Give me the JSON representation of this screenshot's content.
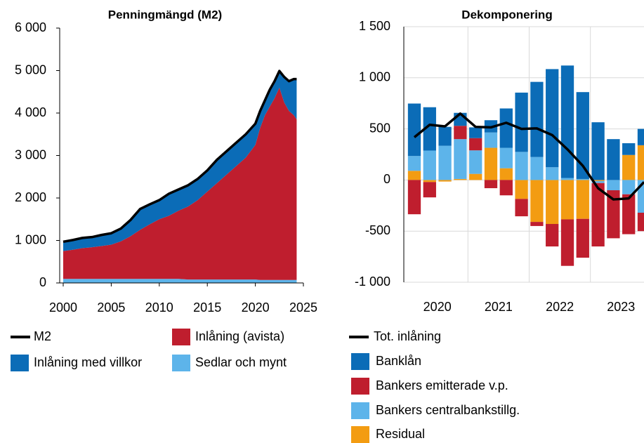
{
  "chart_data": [
    {
      "type": "area",
      "title": "Penningmängd (M2)",
      "x": [
        2000,
        2001,
        2002,
        2003,
        2004,
        2005,
        2006,
        2007,
        2008,
        2009,
        2010,
        2011,
        2012,
        2013,
        2014,
        2015,
        2016,
        2017,
        2018,
        2019,
        2020,
        2020.5,
        2021,
        2021.5,
        2022,
        2022.5,
        2023,
        2023.5,
        2024,
        2024.3
      ],
      "series": [
        {
          "name": "M2",
          "type": "line",
          "color": "#000000",
          "values": [
            970,
            1010,
            1060,
            1080,
            1130,
            1170,
            1280,
            1480,
            1740,
            1850,
            1950,
            2100,
            2200,
            2300,
            2450,
            2650,
            2900,
            3100,
            3300,
            3500,
            3750,
            4050,
            4300,
            4550,
            4750,
            4990,
            4850,
            4750,
            4800,
            4800
          ]
        },
        {
          "name": "Sedlar och mynt",
          "color": "#5db4ea",
          "values": [
            95,
            95,
            95,
            95,
            95,
            95,
            95,
            95,
            95,
            95,
            95,
            95,
            95,
            80,
            80,
            80,
            80,
            80,
            80,
            80,
            80,
            70,
            70,
            70,
            70,
            70,
            70,
            70,
            70,
            70
          ]
        },
        {
          "name": "Inlåning (avista)",
          "color": "#bf1e2e",
          "values": [
            655,
            685,
            725,
            745,
            775,
            805,
            885,
            1005,
            1155,
            1285,
            1405,
            1485,
            1605,
            1720,
            1870,
            2070,
            2270,
            2470,
            2670,
            2870,
            3170,
            3580,
            3880,
            4080,
            4280,
            4530,
            4180,
            3980,
            3880,
            3780
          ]
        },
        {
          "name": "Inlåning med villkor",
          "color": "#0b6cb7",
          "values": [
            220,
            230,
            240,
            240,
            260,
            270,
            300,
            380,
            490,
            470,
            450,
            520,
            500,
            500,
            500,
            500,
            550,
            550,
            550,
            550,
            500,
            400,
            350,
            400,
            400,
            390,
            600,
            700,
            850,
            950
          ]
        }
      ],
      "xlim": [
        2000,
        2025
      ],
      "xticks": [
        2000,
        2005,
        2010,
        2015,
        2020,
        2025
      ],
      "ylim": [
        0,
        6000
      ],
      "yticks": [
        0,
        {
          "value": 1000,
          "label": "1 000"
        },
        {
          "value": 2000,
          "label": "2 000"
        },
        {
          "value": 3000,
          "label": "3 000"
        },
        {
          "value": 4000,
          "label": "4 000"
        },
        {
          "value": 5000,
          "label": "5 000"
        },
        {
          "value": 6000,
          "label": "6 000"
        }
      ]
    },
    {
      "type": "bar",
      "title": "Dekomponering",
      "categories": [
        null,
        null,
        null,
        null,
        null,
        null,
        null,
        null,
        null,
        null,
        null,
        null,
        null,
        null,
        null,
        null
      ],
      "category_groups": [
        "2020",
        "2021",
        "2022",
        "2023"
      ],
      "series": [
        {
          "name": "Tot. inlåning",
          "type": "line",
          "color": "#000000",
          "values": [
            418,
            540,
            525,
            650,
            520,
            515,
            560,
            500,
            505,
            440,
            300,
            140,
            -80,
            -190,
            -180,
            -20
          ]
        },
        {
          "name": "Residual",
          "color": "#f39c12",
          "values": [
            90,
            -20,
            -15,
            10,
            60,
            315,
            115,
            -185,
            -410,
            -430,
            -385,
            -380,
            -10,
            0,
            245,
            340
          ]
        },
        {
          "name": "Bankers centralbankstillg.",
          "color": "#5db4ea",
          "values": [
            145,
            288,
            335,
            390,
            230,
            150,
            200,
            275,
            225,
            125,
            20,
            10,
            -20,
            -100,
            -140,
            -320
          ]
        },
        {
          "name": "Bankers emitterade v.p.",
          "color": "#bf1e2e",
          "values": [
            -335,
            -150,
            0,
            130,
            120,
            -80,
            -150,
            -170,
            -40,
            -220,
            -455,
            -380,
            -620,
            -470,
            -390,
            -180
          ]
        },
        {
          "name": "Banklån",
          "color": "#0b6cb7",
          "values": [
            513,
            424,
            185,
            127,
            105,
            120,
            385,
            580,
            735,
            960,
            1100,
            850,
            565,
            400,
            115,
            160
          ]
        }
      ],
      "ylim": [
        -1000,
        1500
      ],
      "yticks": [
        {
          "value": -1000,
          "label": "-1 000"
        },
        -500,
        0,
        500,
        {
          "value": 1000,
          "label": "1 000"
        },
        {
          "value": 1500,
          "label": "1 500"
        }
      ],
      "grid": true
    }
  ]
}
